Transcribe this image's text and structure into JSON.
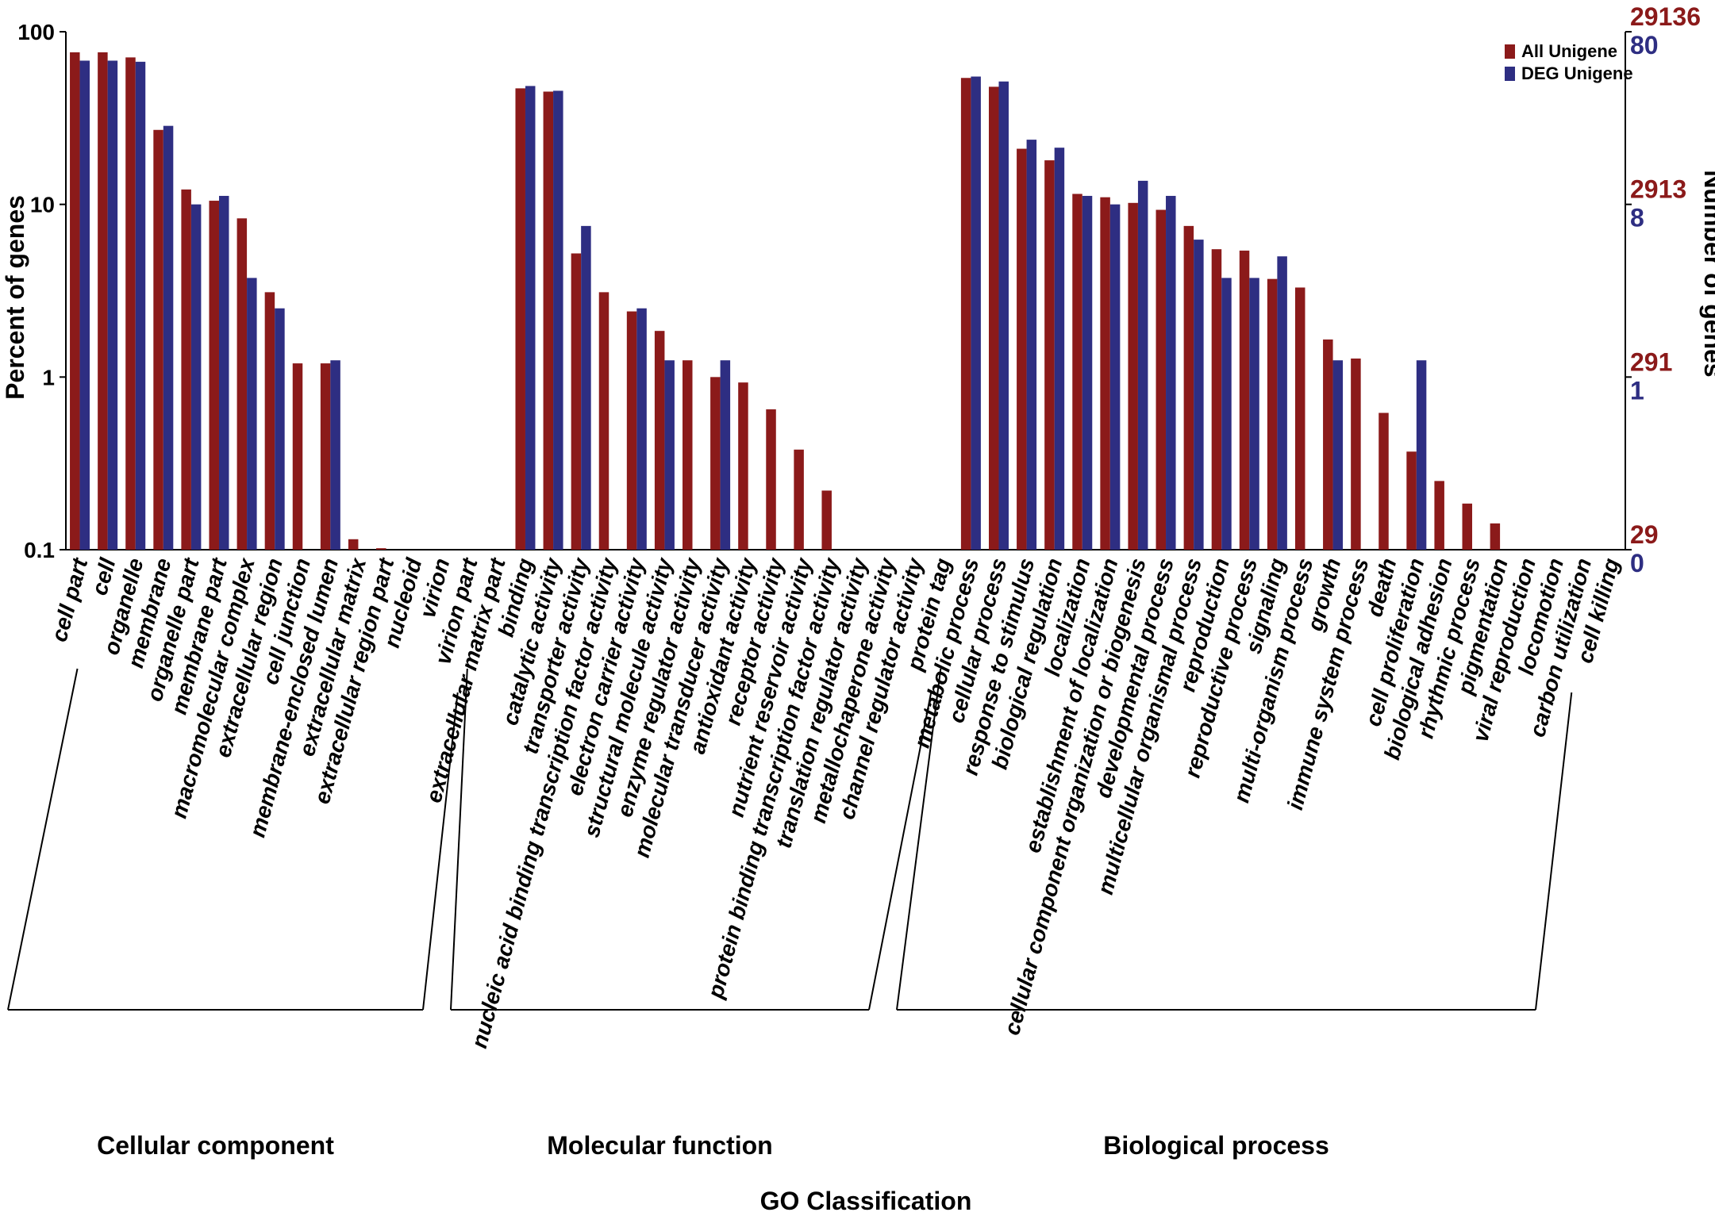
{
  "chart_data": {
    "type": "bar",
    "scale": "log",
    "xlabel": "GO Classification",
    "ylabel_left": "Percent of genes",
    "ylabel_right": "Number of genes",
    "ylim": [
      0.1,
      100
    ],
    "left_ticks": [
      {
        "value": 100,
        "label": "100"
      },
      {
        "value": 10,
        "label": "10"
      },
      {
        "value": 1,
        "label": "1"
      },
      {
        "value": 0.1,
        "label": "0.1"
      }
    ],
    "right_ticks_all": [
      {
        "value": 100,
        "label": "29136"
      },
      {
        "value": 10,
        "label": "2913"
      },
      {
        "value": 1,
        "label": "291"
      },
      {
        "value": 0.1,
        "label": "29"
      }
    ],
    "right_ticks_deg": [
      {
        "value": 100,
        "label": "80"
      },
      {
        "value": 10,
        "label": "8"
      },
      {
        "value": 1,
        "label": "1"
      },
      {
        "value": 0.1,
        "label": "0"
      }
    ],
    "colors": {
      "all": "#8b1a1a",
      "deg": "#2e2e82"
    },
    "series": [
      {
        "name": "All Unigene",
        "color": "#8b1a1a"
      },
      {
        "name": "DEG Unigene",
        "color": "#2e2e82"
      }
    ],
    "groups": [
      {
        "name": "Cellular component",
        "start": 0,
        "end": 13
      },
      {
        "name": "Molecular function",
        "start": 14,
        "end": 30
      },
      {
        "name": "Biological process",
        "start": 31,
        "end": 53
      }
    ],
    "categories": [
      "cell part",
      "cell",
      "organelle",
      "membrane",
      "organelle part",
      "membrane part",
      "macromolecular complex",
      "extracellular region",
      "cell junction",
      "membrane-enclosed lumen",
      "extracellular matrix",
      "extracellular region part",
      "nucleoid",
      "virion",
      "virion part",
      "extracellular matrix part",
      "binding",
      "catalytic activity",
      "transporter activity",
      "nucleic acid binding transcription factor activity",
      "electron carrier activity",
      "structural molecule activity",
      "enzyme regulator activity",
      "molecular transducer activity",
      "antioxidant activity",
      "receptor activity",
      "nutrient reservoir activity",
      "protein binding transcription factor activity",
      "translation regulator activity",
      "metallochaperone activity",
      "channel regulator activity",
      "protein tag",
      "metabolic process",
      "cellular process",
      "response to stimulus",
      "biological regulation",
      "localization",
      "establishment of localization",
      "cellular component organization or biogenesis",
      "developmental process",
      "multicellular organismal process",
      "reproduction",
      "reproductive process",
      "signaling",
      "multi-organism process",
      "growth",
      "immune system process",
      "death",
      "cell proliferation",
      "biological adhesion",
      "rhythmic process",
      "pigmentation",
      "viral reproduction",
      "locomotion",
      "carbon utilization",
      "cell killing"
    ],
    "all_unigene": [
      76,
      76,
      71,
      27,
      12.2,
      10.5,
      8.3,
      3.1,
      1.2,
      1.2,
      0.115,
      0.102,
      null,
      null,
      null,
      null,
      47,
      45,
      5.2,
      3.1,
      2.4,
      1.85,
      1.25,
      1.0,
      0.93,
      0.65,
      0.38,
      0.22,
      null,
      null,
      null,
      null,
      54,
      48,
      21,
      18,
      11.5,
      11,
      10.2,
      9.3,
      7.5,
      5.5,
      5.4,
      3.7,
      3.3,
      1.65,
      1.28,
      0.62,
      0.37,
      0.25,
      0.185,
      0.142,
      null,
      null,
      null,
      null
    ],
    "deg_unigene": [
      68,
      68,
      67,
      28.5,
      10,
      11.2,
      3.75,
      2.5,
      null,
      1.25,
      null,
      null,
      null,
      null,
      null,
      null,
      48.5,
      45.5,
      7.5,
      null,
      2.5,
      1.25,
      null,
      1.25,
      null,
      null,
      null,
      null,
      null,
      null,
      null,
      null,
      55,
      51.5,
      23.7,
      21.3,
      11.2,
      10,
      13.7,
      11.2,
      6.25,
      3.75,
      3.75,
      5,
      null,
      1.25,
      null,
      null,
      1.25,
      null,
      null,
      null,
      null,
      null,
      null,
      null
    ]
  }
}
